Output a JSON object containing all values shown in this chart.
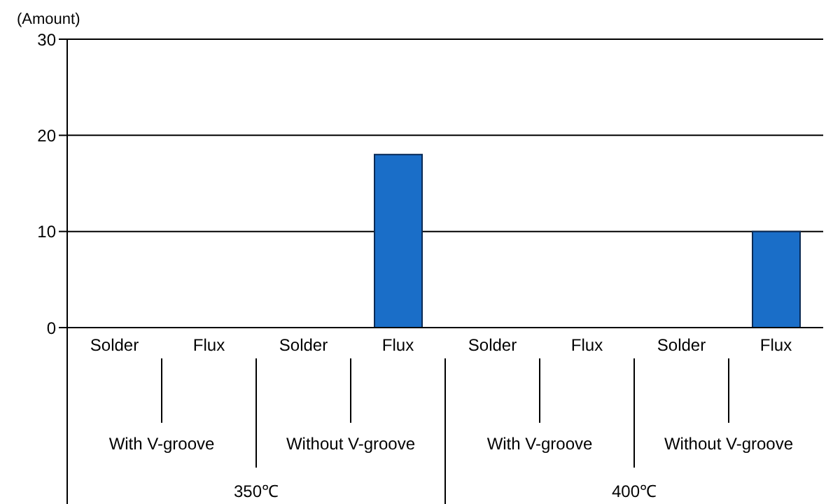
{
  "chart_data": {
    "type": "bar",
    "ylabel": "(Amount)",
    "categories": [
      "Solder",
      "Flux",
      "Solder",
      "Flux",
      "Solder",
      "Flux",
      "Solder",
      "Flux"
    ],
    "values": [
      0,
      0,
      0,
      18,
      0,
      0,
      0,
      10
    ],
    "color": "#1a6ec8",
    "ylim": [
      0,
      30
    ],
    "yticks": [
      0,
      10,
      20,
      30
    ],
    "grid": "y",
    "annotations": [
      "With V-groove",
      "Without V-groove",
      "With V-groove",
      "Without V-groove",
      "350℃",
      "400℃"
    ]
  }
}
